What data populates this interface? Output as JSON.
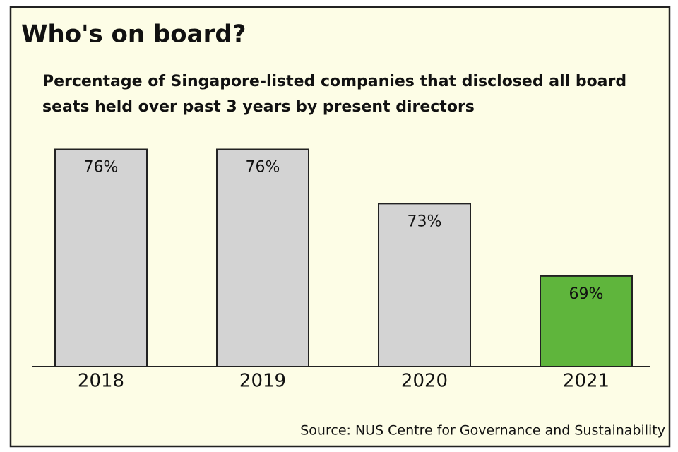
{
  "chart_data": {
    "type": "bar",
    "title": "Who's on board?",
    "subtitle": "Percentage of Singapore-listed companies that disclosed all board seats held over past 3 years by present directors",
    "categories": [
      "2018",
      "2019",
      "2020",
      "2021"
    ],
    "values": [
      76,
      76,
      73,
      69
    ],
    "value_labels": [
      "76%",
      "76%",
      "73%",
      "69%"
    ],
    "colors": [
      "#d3d3d3",
      "#d3d3d3",
      "#d3d3d3",
      "#5fb53c"
    ],
    "ylim": [
      64,
      80
    ],
    "source": "Source: NUS Centre for Governance and Sustainability"
  }
}
